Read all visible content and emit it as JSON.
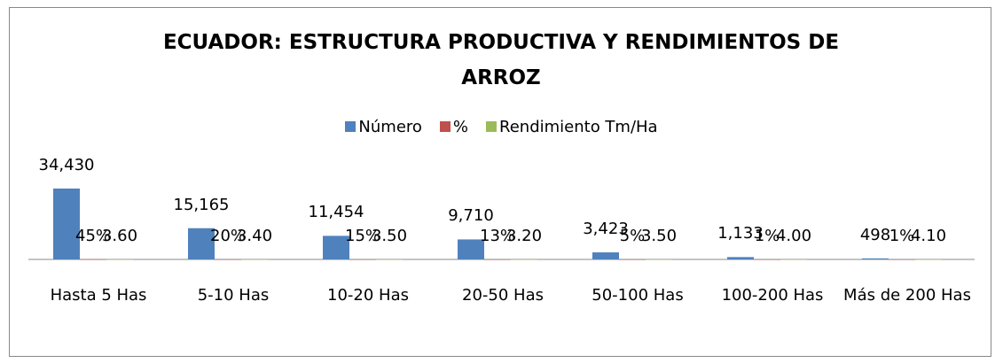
{
  "chart_data": {
    "type": "bar",
    "title": "ECUADOR: ESTRUCTURA PRODUCTIVA Y RENDIMIENTOS DE ARROZ",
    "categories": [
      "Hasta 5 Has",
      "5-10 Has",
      "10-20 Has",
      "20-50 Has",
      "50-100 Has",
      "100-200 Has",
      "Más de 200 Has"
    ],
    "series": [
      {
        "name": "Número",
        "color": "#4f81bd",
        "values": [
          34430,
          15165,
          11454,
          9710,
          3423,
          1133,
          498
        ],
        "value_labels": [
          "34,430",
          "15,165",
          "11,454",
          "9,710",
          "3,423",
          "1,133",
          "498"
        ]
      },
      {
        "name": "%",
        "color": "#c0504d",
        "values": [
          45,
          20,
          15,
          13,
          5,
          1,
          1
        ],
        "value_labels": [
          "45%",
          "20%",
          "15%",
          "13%",
          "5%",
          "1%",
          "1%"
        ]
      },
      {
        "name": "Rendimiento Tm/Ha",
        "color": "#9bbb59",
        "values": [
          3.6,
          3.4,
          3.5,
          3.2,
          3.5,
          4.0,
          4.1
        ],
        "value_labels": [
          "3.60",
          "3.40",
          "3.50",
          "3.20",
          "3.50",
          "4.00",
          "4.10"
        ]
      }
    ],
    "ylim": [
      0,
      40000
    ],
    "legend": "top"
  }
}
